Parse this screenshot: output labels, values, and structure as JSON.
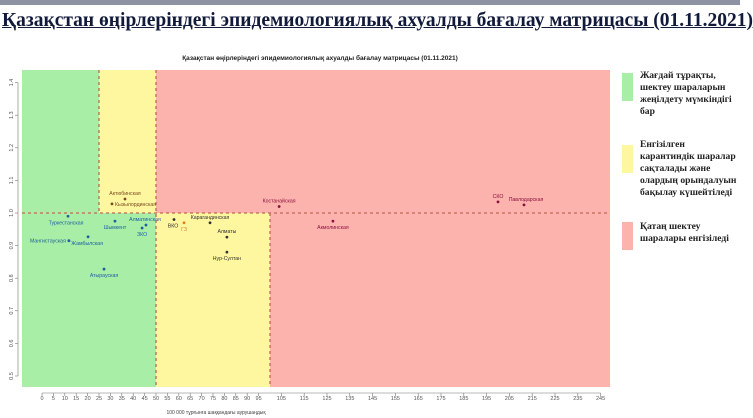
{
  "slide_title": "Қазақстан өңірлеріндегі эпидемиологиялық ахуалды бағалау матрицасы  (01.11.2021)",
  "legend": [
    {
      "color": "#a8eea6",
      "text": "Жағдай тұрақты, шектеу шараларын жеңілдету мүмкіндігі бар"
    },
    {
      "color": "#fff6a0",
      "text": "Енгізілген карантиндік шаралар сақталады және олардың орындалуын бақылау күшейтіледі"
    },
    {
      "color": "#fdb3ad",
      "text": "Қатаң шектеу шаралары енгізіледі"
    }
  ],
  "chart_data": {
    "type": "scatter",
    "title": "Қазақстан өңірлеріндегі эпидемиологиялық ахуалды бағалау матрицасы  (01.11.2021)",
    "xlabel": "100 000 тұрғынға шаққандағы аурушаңдық",
    "ylabel": "",
    "xlim": [
      -8,
      250
    ],
    "ylim": [
      0.46,
      1.44
    ],
    "x_ticks": [
      0,
      5,
      10,
      15,
      20,
      25,
      30,
      35,
      40,
      45,
      50,
      55,
      60,
      65,
      70,
      75,
      80,
      85,
      90,
      95,
      105,
      115,
      125,
      135,
      145,
      155,
      165,
      175,
      185,
      195,
      205,
      215,
      225,
      235,
      245
    ],
    "y_ticks": [
      0.5,
      0.6,
      0.7,
      0.8,
      0.9,
      1.0,
      1.1,
      1.2,
      1.3,
      1.4
    ],
    "thresholds": {
      "x": [
        25,
        50,
        100
      ],
      "y": 1.0
    },
    "zone_colors": {
      "green": "#a8eea6",
      "yellow": "#fff6a0",
      "red": "#fdb3ad",
      "line": "#c0675a"
    },
    "points": [
      {
        "label": "Туркестанская",
        "x": 11.4,
        "y": 0.99,
        "color": "#1f5fa0"
      },
      {
        "label": "Мангистауская",
        "x": 11.8,
        "y": 0.915,
        "color": "#1f5fa0"
      },
      {
        "label": "Жамбылская",
        "x": 20.2,
        "y": 0.927,
        "color": "#1f5fa0"
      },
      {
        "label": "Атырауская",
        "x": 27.2,
        "y": 0.828,
        "color": "#1f5fa0"
      },
      {
        "label": "Шымкент",
        "x": 32,
        "y": 0.975,
        "color": "#1f5fa0"
      },
      {
        "label": "ЗКО",
        "x": 43.9,
        "y": 0.954,
        "color": "#1f5fa0"
      },
      {
        "label": "Алматинская",
        "x": 45.6,
        "y": 0.963,
        "color": "#1f5fa0"
      },
      {
        "label": "Актюбинская",
        "x": 36.4,
        "y": 1.043,
        "color": "#7a4a20"
      },
      {
        "label": "Кызылординская",
        "x": 30.7,
        "y": 1.028,
        "color": "#7a4a20"
      },
      {
        "label": "ВКО",
        "x": 57.9,
        "y": 0.98,
        "color": "#333333"
      },
      {
        "label": "ГЗ",
        "x": 62.3,
        "y": 0.97,
        "color": "#e08020"
      },
      {
        "label": "Карагандинская",
        "x": 73.7,
        "y": 0.97,
        "color": "#333333"
      },
      {
        "label": "Алматы",
        "x": 81.1,
        "y": 0.926,
        "color": "#333333"
      },
      {
        "label": "Нур-Султан",
        "x": 81.1,
        "y": 0.88,
        "color": "#333333"
      },
      {
        "label": "Костанайская",
        "x": 104,
        "y": 1.02,
        "color": "#8a1040"
      },
      {
        "label": "Акмолинская",
        "x": 127.6,
        "y": 0.975,
        "color": "#8a1040"
      },
      {
        "label": "СКО",
        "x": 200,
        "y": 1.034,
        "color": "#8a1040"
      },
      {
        "label": "Павлодарская",
        "x": 211.4,
        "y": 1.025,
        "color": "#8a1040"
      }
    ]
  }
}
